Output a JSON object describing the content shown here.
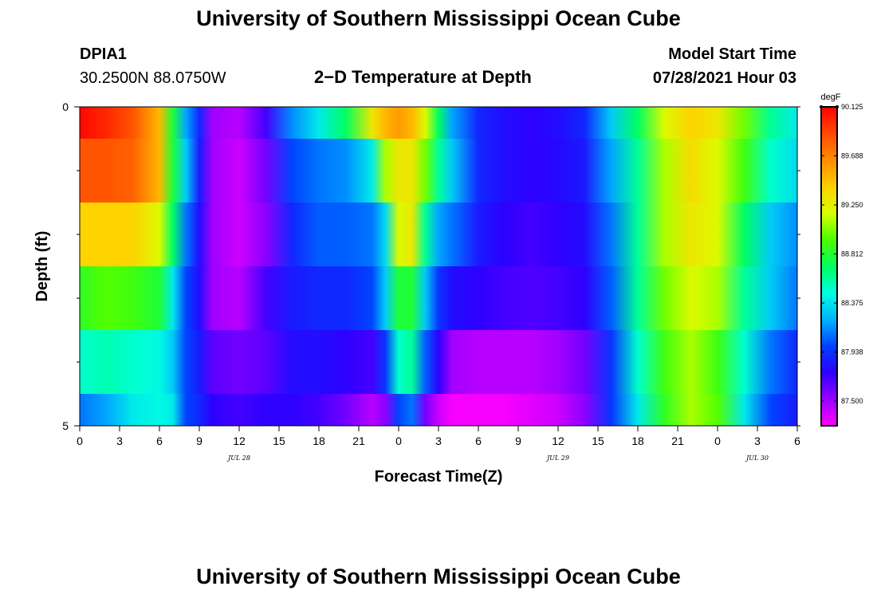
{
  "header": {
    "title": "University of Southern Mississippi Ocean Cube",
    "station": "DPIA1",
    "coords": "30.2500N  88.0750W",
    "plot_title": "2−D Temperature at Depth",
    "start_label": "Model Start Time",
    "start_value": "07/28/2021 Hour 03"
  },
  "footer": {
    "title": "University of Southern Mississippi Ocean Cube"
  },
  "colorbar": {
    "unit": "degF",
    "min": 87.28,
    "max": 90.125,
    "ticks": [
      "90.125",
      "89.688",
      "89.250",
      "88.812",
      "88.375",
      "87.938",
      "87.500"
    ],
    "colors": [
      "#ff00ff",
      "#9a00ff",
      "#2b00ff",
      "#0040ff",
      "#00b4ff",
      "#00ffe0",
      "#00ff60",
      "#4cff00",
      "#d8ff00",
      "#ffd000",
      "#ff8c00",
      "#ff4a00",
      "#ff0000"
    ]
  },
  "chart_data": {
    "type": "heatmap",
    "title": "2−D Temperature at Depth",
    "xlabel": "Forecast Time(Z)",
    "ylabel": "Depth (ft)",
    "x_tick_labels": [
      "0",
      "3",
      "6",
      "9",
      "12",
      "15",
      "18",
      "21",
      "0",
      "3",
      "6",
      "9",
      "12",
      "15",
      "18",
      "21",
      "0",
      "3",
      "6"
    ],
    "x_date_labels": [
      {
        "label": "JUL 28",
        "hour": 12
      },
      {
        "label": "JUL 29",
        "hour": 36
      },
      {
        "label": "JUL 30",
        "hour": 51
      }
    ],
    "y_tick_labels": [
      "0",
      "5"
    ],
    "xlim": [
      0,
      54
    ],
    "ylim": [
      0,
      5
    ],
    "unit": "degF",
    "time_hours": [
      0,
      2,
      4,
      6,
      7,
      8,
      9,
      10,
      12,
      14,
      16,
      18,
      20,
      22,
      23,
      24,
      25,
      26,
      27,
      28,
      30,
      32,
      34,
      36,
      38,
      40,
      42,
      44,
      46,
      48,
      50,
      52,
      54
    ],
    "depth_rows": [
      "0.0-0.5",
      "0.5-1.5",
      "1.5-2.5",
      "2.5-3.5",
      "3.5-4.5",
      "4.5-5.0"
    ],
    "values": [
      [
        90.1,
        90.0,
        89.85,
        89.5,
        88.8,
        88.2,
        87.9,
        87.5,
        87.45,
        87.7,
        88.15,
        88.4,
        88.7,
        89.3,
        89.5,
        89.6,
        89.5,
        89.2,
        88.7,
        88.2,
        87.9,
        87.8,
        87.75,
        87.8,
        87.9,
        88.3,
        88.7,
        89.2,
        89.4,
        89.3,
        89.0,
        88.6,
        88.4
      ],
      [
        89.85,
        89.85,
        89.8,
        89.5,
        88.8,
        88.3,
        87.85,
        87.5,
        87.4,
        87.6,
        88.0,
        88.1,
        88.15,
        88.4,
        89.1,
        89.3,
        89.3,
        89.0,
        88.6,
        88.3,
        87.9,
        87.8,
        87.75,
        87.78,
        87.85,
        88.2,
        88.6,
        89.1,
        89.35,
        89.2,
        88.9,
        88.5,
        88.35
      ],
      [
        89.4,
        89.4,
        89.4,
        89.2,
        88.7,
        88.1,
        87.8,
        87.5,
        87.4,
        87.55,
        87.9,
        88.05,
        88.05,
        88.1,
        88.35,
        89.2,
        89.3,
        88.6,
        88.2,
        88.1,
        87.85,
        87.75,
        87.7,
        87.75,
        87.8,
        88.1,
        88.6,
        89.1,
        89.3,
        89.2,
        88.7,
        88.3,
        88.15
      ],
      [
        88.85,
        88.95,
        88.9,
        88.8,
        88.4,
        88.0,
        87.8,
        87.5,
        87.45,
        87.7,
        87.85,
        87.9,
        87.9,
        88.0,
        88.3,
        88.8,
        88.8,
        88.3,
        87.95,
        87.8,
        87.75,
        87.7,
        87.68,
        87.7,
        87.75,
        88.05,
        88.6,
        89.0,
        89.2,
        89.1,
        88.6,
        88.3,
        88.1
      ],
      [
        88.5,
        88.55,
        88.5,
        88.45,
        88.3,
        88.0,
        87.85,
        87.65,
        87.6,
        87.65,
        87.8,
        87.8,
        87.75,
        87.7,
        87.95,
        88.5,
        88.6,
        88.05,
        87.75,
        87.5,
        87.45,
        87.45,
        87.45,
        87.5,
        87.6,
        87.95,
        88.5,
        88.9,
        89.1,
        88.9,
        88.5,
        88.1,
        87.9
      ],
      [
        88.1,
        88.2,
        88.4,
        88.45,
        88.4,
        88.0,
        87.9,
        87.75,
        87.7,
        87.75,
        87.75,
        87.7,
        87.6,
        87.45,
        87.55,
        88.0,
        88.1,
        87.6,
        87.4,
        87.3,
        87.3,
        87.3,
        87.35,
        87.4,
        87.55,
        87.95,
        88.4,
        88.85,
        89.1,
        88.95,
        88.4,
        88.0,
        87.85
      ]
    ]
  }
}
